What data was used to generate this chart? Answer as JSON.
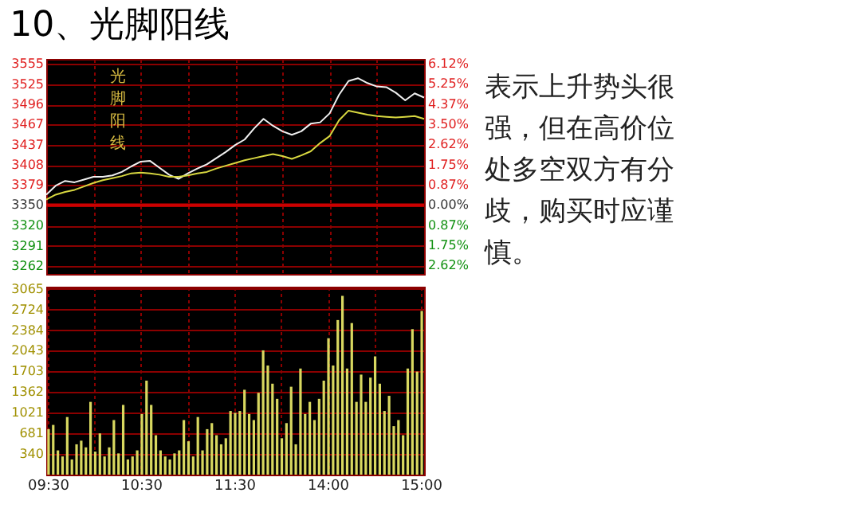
{
  "chart_data": [
    {
      "type": "line",
      "title": "10、光脚阳线",
      "annotations": [
        "光脚阳线",
        "表示上升势头很强，但在高价位处多空双方有分歧，购买时应谨慎。"
      ],
      "categories": [
        null,
        null,
        null,
        null,
        null,
        null,
        null,
        null,
        null,
        null,
        null,
        null,
        null,
        null,
        null,
        null,
        null,
        null,
        null,
        null,
        null,
        null,
        null,
        null,
        null,
        null,
        null,
        null,
        null,
        null,
        null,
        null,
        null,
        null,
        null,
        null,
        null,
        null,
        null,
        null,
        null
      ],
      "ylim": [
        3250,
        3562
      ],
      "yticks": [
        3555,
        3525,
        3496,
        3467,
        3437,
        3408,
        3379,
        3350,
        3320,
        3291,
        3262
      ],
      "y2lim": [
        -2.99,
        6.33
      ],
      "y2ticks": [
        {
          "value": 6.12,
          "label": "6.12%"
        },
        {
          "value": 5.25,
          "label": "5.25%"
        },
        {
          "value": 4.37,
          "label": "4.37%"
        },
        {
          "value": 3.5,
          "label": "3.50%"
        },
        {
          "value": 2.62,
          "label": "2.62%"
        },
        {
          "value": 1.75,
          "label": "1.75%"
        },
        {
          "value": 0.87,
          "label": "0.87%"
        },
        {
          "value": 0,
          "label": "0.00%"
        },
        {
          "value": -0.87,
          "label": "0.87%"
        },
        {
          "value": -1.75,
          "label": "1.75%"
        },
        {
          "value": -2.62,
          "label": "2.62%"
        }
      ],
      "ref_lines": [
        {
          "axis": "y",
          "value": 3350,
          "color": "#cc0000"
        }
      ],
      "grid": true,
      "tick_labels": "y",
      "series": [
        {
          "color": "#f0f0f0",
          "values": [
            3365,
            3378,
            3385,
            3383,
            3387,
            3391,
            3391,
            3393,
            3398,
            3406,
            3413,
            3414,
            3404,
            3394,
            3388,
            3396,
            3403,
            3409,
            3418,
            3427,
            3437,
            3445,
            3461,
            3475,
            3465,
            3457,
            3452,
            3457,
            3468,
            3470,
            3483,
            3510,
            3530,
            3534,
            3527,
            3522,
            3521,
            3513,
            3502,
            3512,
            3506
          ]
        },
        {
          "color": "#d8d840",
          "values": [
            3358,
            3365,
            3369,
            3372,
            3377,
            3382,
            3386,
            3389,
            3392,
            3396,
            3397,
            3396,
            3394,
            3391,
            3391,
            3393,
            3396,
            3398,
            3403,
            3407,
            3411,
            3415,
            3418,
            3421,
            3424,
            3421,
            3417,
            3422,
            3428,
            3440,
            3450,
            3473,
            3487,
            3484,
            3481,
            3479,
            3478,
            3477,
            3478,
            3479,
            3475
          ]
        }
      ]
    },
    {
      "type": "bar",
      "categories": [
        "09:30",
        null,
        null,
        null,
        null,
        null,
        null,
        null,
        null,
        null,
        null,
        null,
        null,
        null,
        null,
        null,
        null,
        null,
        null,
        null,
        "10:30",
        null,
        null,
        null,
        null,
        null,
        null,
        null,
        null,
        null,
        null,
        null,
        null,
        null,
        null,
        null,
        null,
        null,
        null,
        null,
        "11:30",
        null,
        null,
        null,
        null,
        null,
        null,
        null,
        null,
        null,
        null,
        null,
        null,
        null,
        null,
        null,
        null,
        null,
        null,
        null,
        "14:00",
        null,
        null,
        null,
        null,
        null,
        null,
        null,
        null,
        null,
        null,
        null,
        null,
        null,
        null,
        null,
        null,
        null,
        null,
        null,
        "15:00"
      ],
      "ylim": [
        0,
        3100
      ],
      "yticks": [
        340,
        681,
        1021,
        1362,
        1703,
        2043,
        2384,
        2724,
        3065
      ],
      "grid": true,
      "color": "#d8d860",
      "values": [
        750,
        820,
        400,
        300,
        950,
        250,
        500,
        560,
        450,
        1200,
        380,
        680,
        300,
        450,
        900,
        350,
        1150,
        250,
        300,
        400,
        1000,
        1550,
        1150,
        650,
        400,
        300,
        250,
        350,
        400,
        900,
        550,
        300,
        950,
        400,
        750,
        850,
        650,
        500,
        600,
        1050,
        1020,
        1050,
        1400,
        1000,
        900,
        1350,
        2050,
        1800,
        1500,
        1250,
        600,
        850,
        1450,
        500,
        1750,
        1000,
        1200,
        900,
        1250,
        1550,
        2250,
        1800,
        2550,
        2950,
        1750,
        2500,
        1200,
        1650,
        1200,
        1600,
        1950,
        1500,
        1050,
        1300,
        800,
        900,
        650,
        1750,
        2400,
        1700,
        2700
      ]
    }
  ]
}
